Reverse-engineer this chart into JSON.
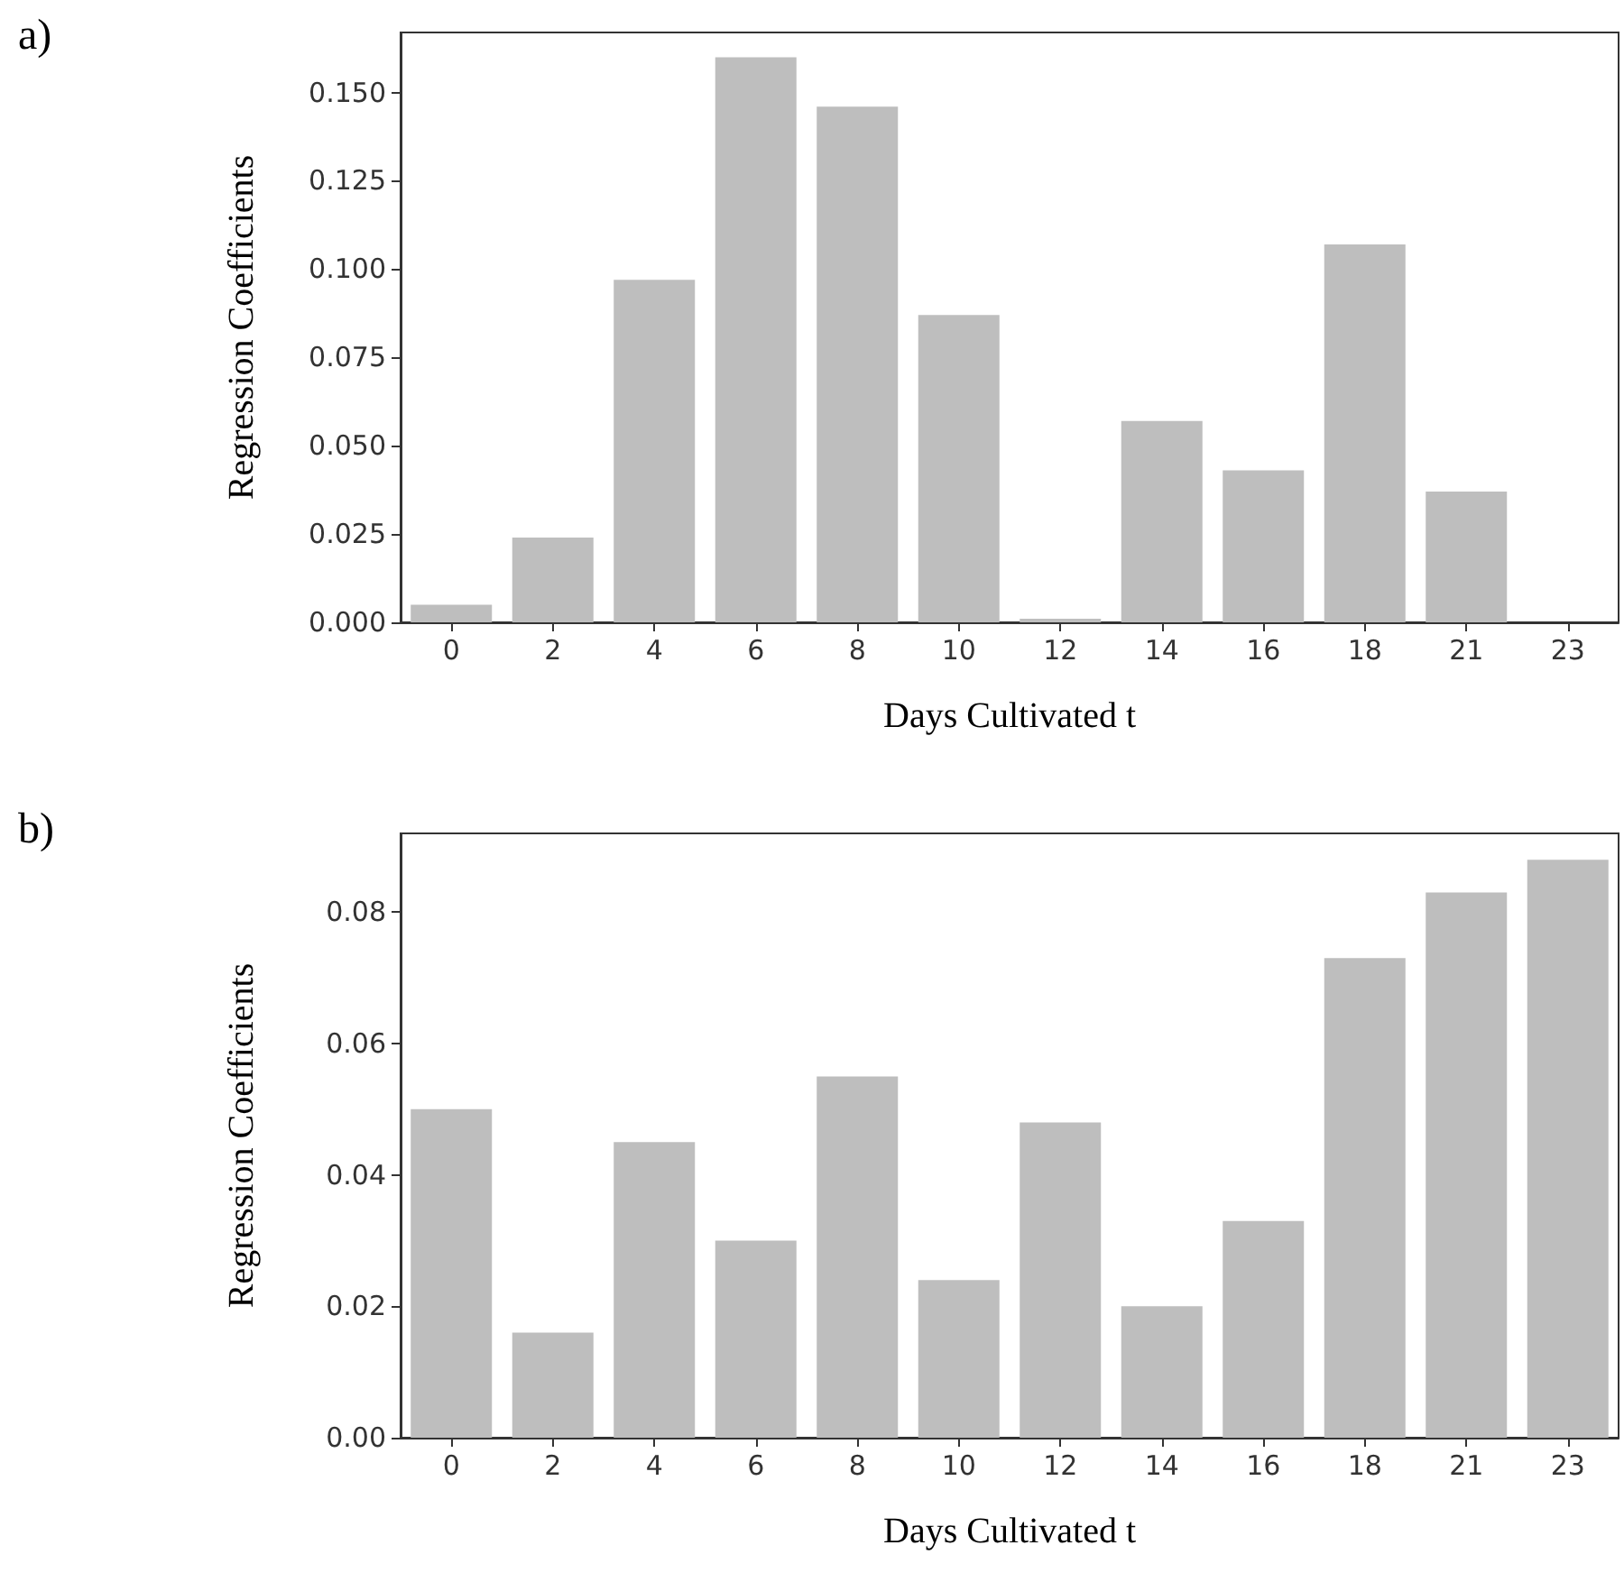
{
  "chart_data": [
    {
      "type": "bar",
      "annotations": [
        "a)"
      ],
      "xlabel": "Days Cultivated t",
      "ylabel": "Regression Coefficients",
      "categories": [
        "0",
        "2",
        "4",
        "6",
        "8",
        "10",
        "12",
        "14",
        "16",
        "18",
        "21",
        "23"
      ],
      "values": [
        0.005,
        0.024,
        0.097,
        0.16,
        0.146,
        0.087,
        0.001,
        0.057,
        0.043,
        0.107,
        0.037,
        0.0
      ],
      "color": "#bebebe",
      "ylim": [
        0,
        0.167
      ],
      "yticks": [
        {
          "value": 0,
          "label": "0.000"
        },
        0.025,
        {
          "value": 0.05,
          "label": "0.050"
        },
        0.075,
        {
          "value": 0.1,
          "label": "0.100"
        },
        0.125,
        {
          "value": 0.15,
          "label": "0.150"
        }
      ],
      "grid": false
    },
    {
      "type": "bar",
      "annotations": [
        "b)"
      ],
      "xlabel": "Days Cultivated t",
      "ylabel": "Regression Coefficients",
      "categories": [
        "0",
        "2",
        "4",
        "6",
        "8",
        "10",
        "12",
        "14",
        "16",
        "18",
        "21",
        "23"
      ],
      "values": [
        0.05,
        0.016,
        0.045,
        0.03,
        0.055,
        0.024,
        0.048,
        0.02,
        0.033,
        0.073,
        0.083,
        0.088
      ],
      "color": "#bebebe",
      "ylim": [
        0,
        0.092
      ],
      "yticks": [
        {
          "value": 0,
          "label": "0.00"
        },
        0.02,
        0.04,
        0.06,
        0.08
      ],
      "grid": false
    }
  ]
}
